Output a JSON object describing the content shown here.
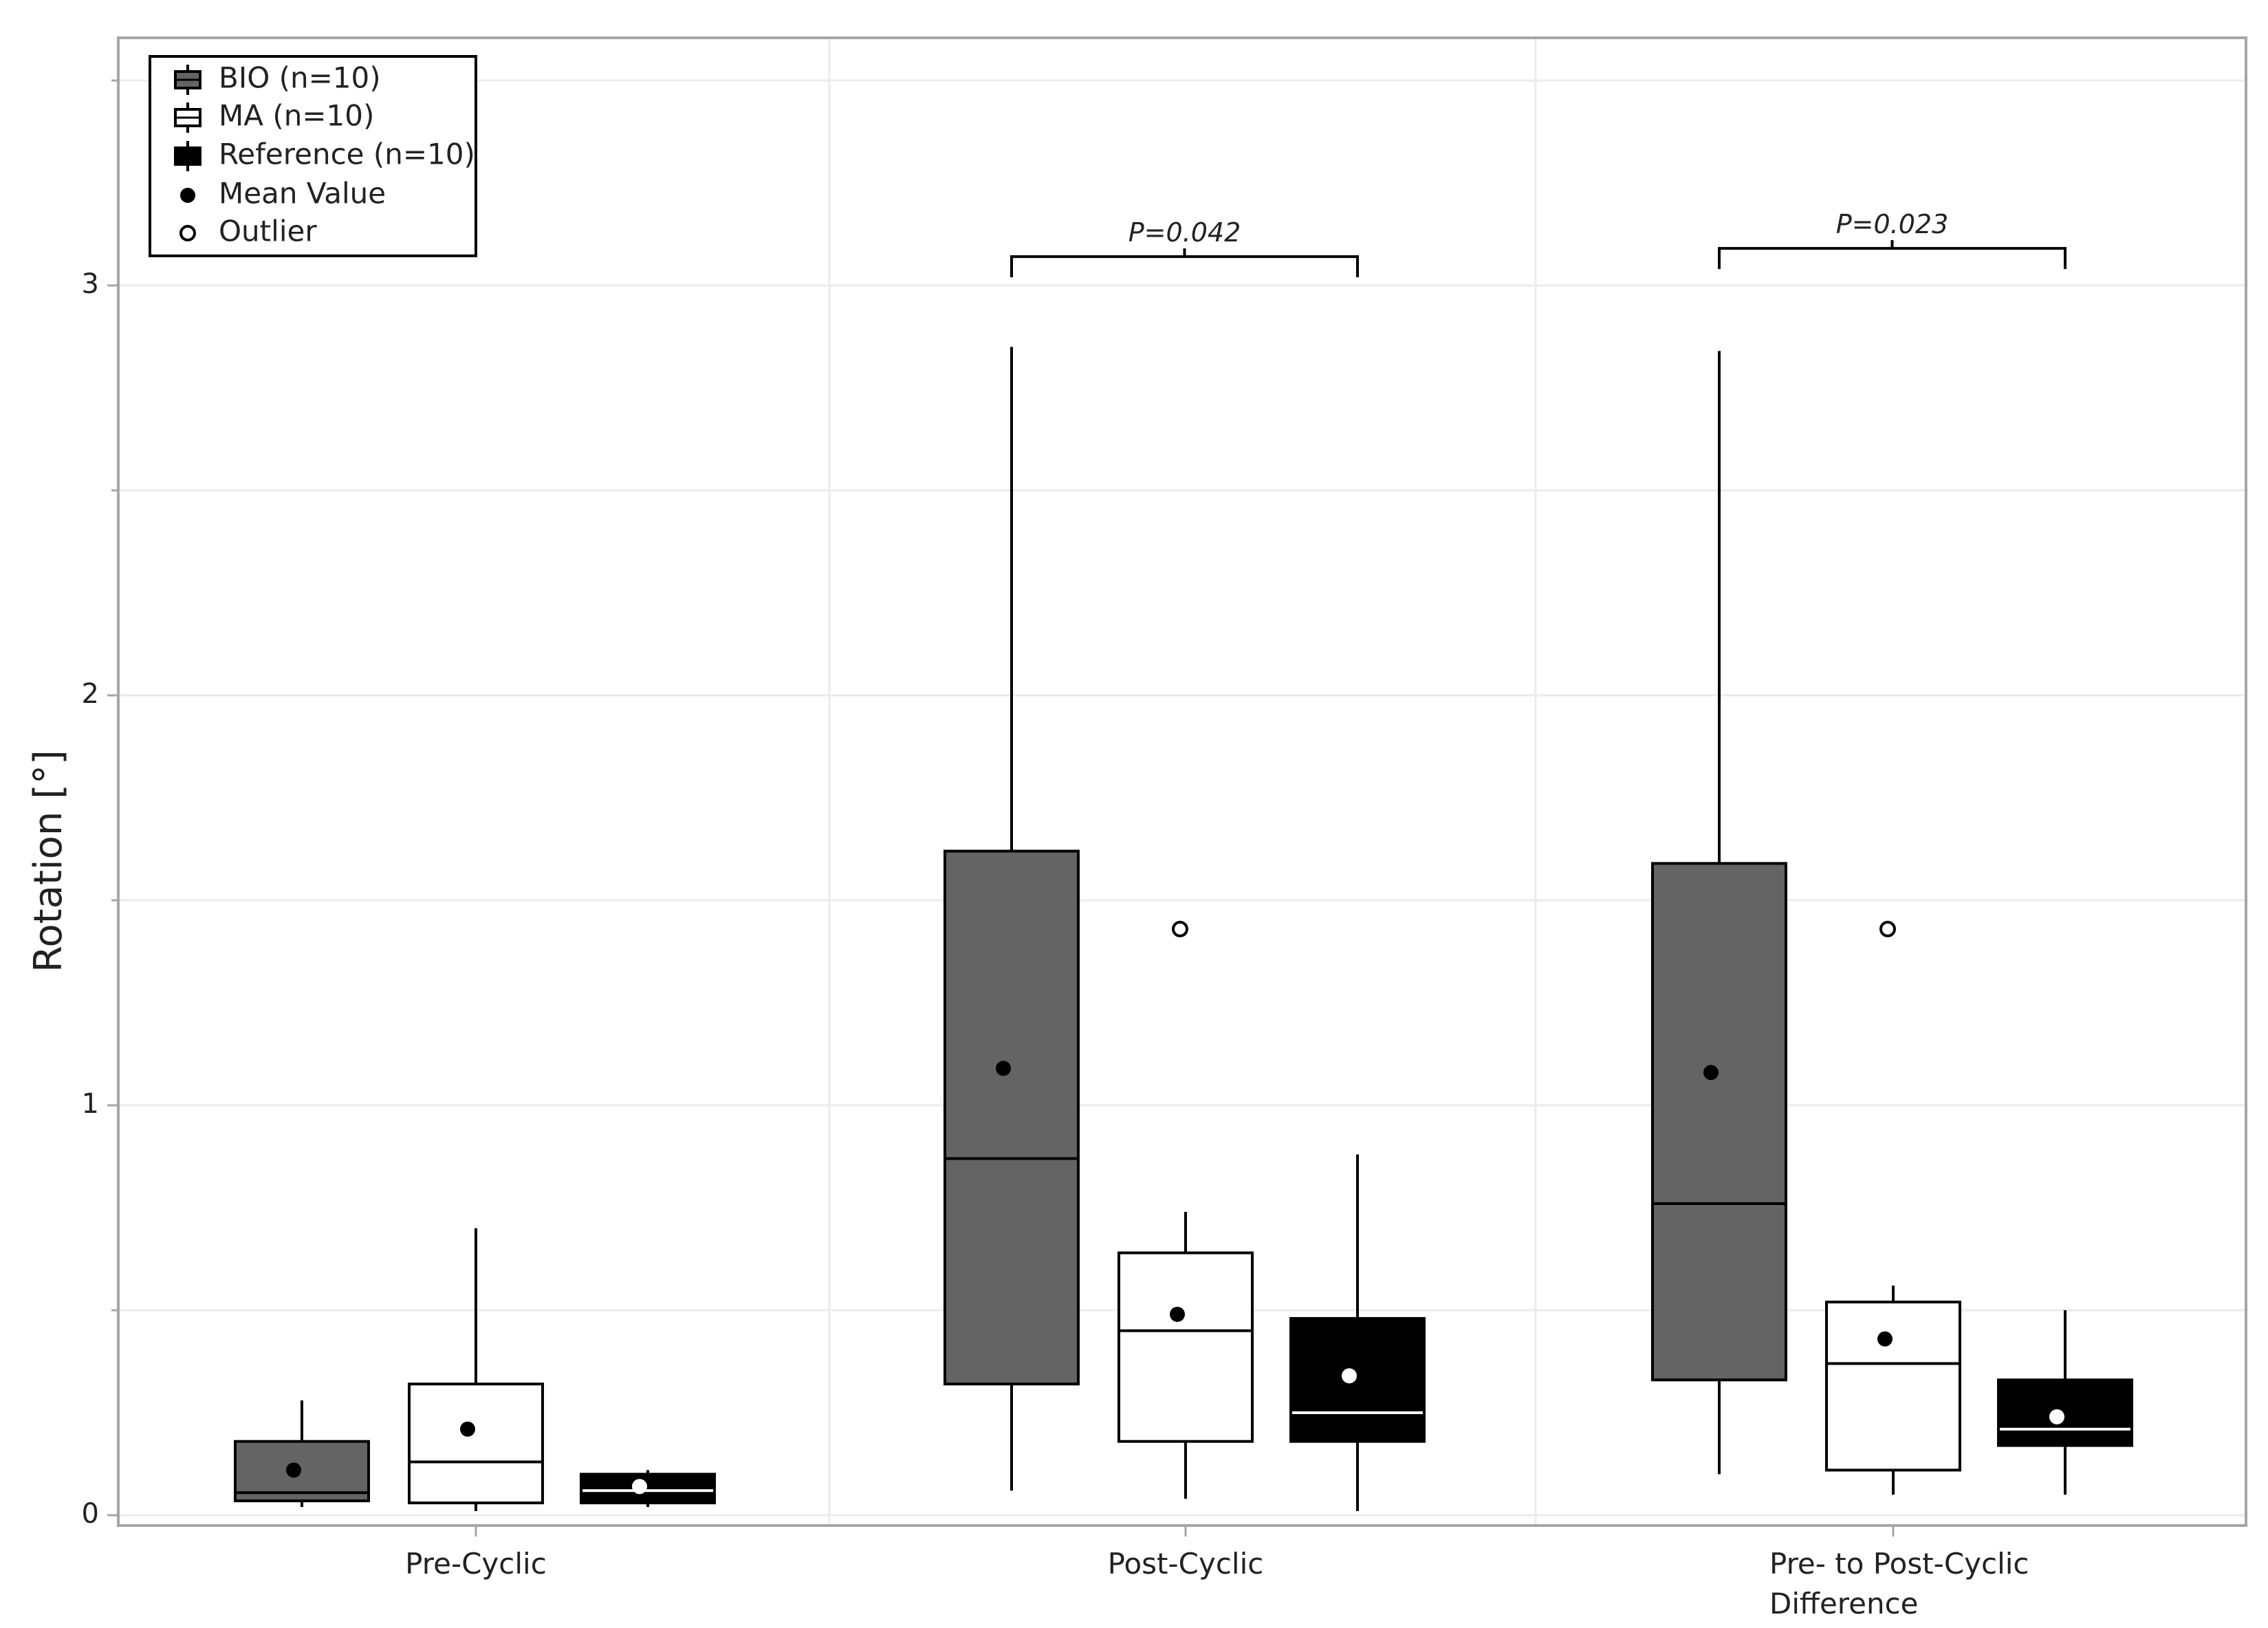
{
  "chart_data": {
    "type": "box",
    "ylabel": "Rotation [°]",
    "ylim": [
      -0.03,
      3.55
    ],
    "y_ticks": [
      0,
      1,
      2,
      3
    ],
    "categories": [
      {
        "lines": [
          "Pre-Cyclic"
        ]
      },
      {
        "lines": [
          "Post-Cyclic"
        ]
      },
      {
        "lines": [
          "Pre- to Post-Cyclic",
          "Difference"
        ]
      }
    ],
    "series": [
      {
        "name": "BIO (n=10)",
        "fill": "#646464",
        "median_color": "#000000",
        "mean_color": "#000000",
        "boxes": [
          {
            "min": 0.02,
            "q1": 0.035,
            "median": 0.055,
            "q3": 0.18,
            "max": 0.28,
            "mean": 0.11,
            "outliers": []
          },
          {
            "min": 0.06,
            "q1": 0.32,
            "median": 0.87,
            "q3": 1.62,
            "max": 2.85,
            "mean": 1.09,
            "outliers": []
          },
          {
            "min": 0.1,
            "q1": 0.33,
            "median": 0.76,
            "q3": 1.59,
            "max": 2.84,
            "mean": 1.08,
            "outliers": []
          }
        ]
      },
      {
        "name": "MA (n=10)",
        "fill": "#ffffff",
        "median_color": "#000000",
        "mean_color": "#000000",
        "boxes": [
          {
            "min": 0.01,
            "q1": 0.03,
            "median": 0.13,
            "q3": 0.32,
            "max": 0.7,
            "mean": 0.21,
            "outliers": []
          },
          {
            "min": 0.04,
            "q1": 0.18,
            "median": 0.45,
            "q3": 0.64,
            "max": 0.74,
            "mean": 0.49,
            "outliers": [
              1.43
            ]
          },
          {
            "min": 0.05,
            "q1": 0.11,
            "median": 0.37,
            "q3": 0.52,
            "max": 0.56,
            "mean": 0.43,
            "outliers": [
              1.43
            ]
          }
        ]
      },
      {
        "name": "Reference (n=10)",
        "fill": "#000000",
        "median_color": "#ffffff",
        "mean_color": "#ffffff",
        "boxes": [
          {
            "min": 0.02,
            "q1": 0.03,
            "median": 0.06,
            "q3": 0.1,
            "max": 0.11,
            "mean": 0.07,
            "outliers": []
          },
          {
            "min": 0.01,
            "q1": 0.18,
            "median": 0.25,
            "q3": 0.48,
            "max": 0.88,
            "mean": 0.34,
            "outliers": []
          },
          {
            "min": 0.05,
            "q1": 0.17,
            "median": 0.21,
            "q3": 0.33,
            "max": 0.5,
            "mean": 0.24,
            "outliers": []
          }
        ]
      }
    ],
    "legend": {
      "position": "top-left",
      "items": [
        {
          "label": "BIO (n=10)",
          "marker": "box-grey"
        },
        {
          "label": "MA (n=10)",
          "marker": "box-white"
        },
        {
          "label": "Reference (n=10)",
          "marker": "box-black"
        },
        {
          "label": "Mean Value",
          "marker": "filled-dot"
        },
        {
          "label": "Outlier",
          "marker": "open-dot"
        }
      ]
    },
    "annotations": [
      {
        "category": 1,
        "from_series": 0,
        "to_series": 2,
        "text": "P=0.042",
        "y": 3.02
      },
      {
        "category": 2,
        "from_series": 0,
        "to_series": 2,
        "text": "P=0.023",
        "y": 3.04
      }
    ],
    "grid": true
  }
}
